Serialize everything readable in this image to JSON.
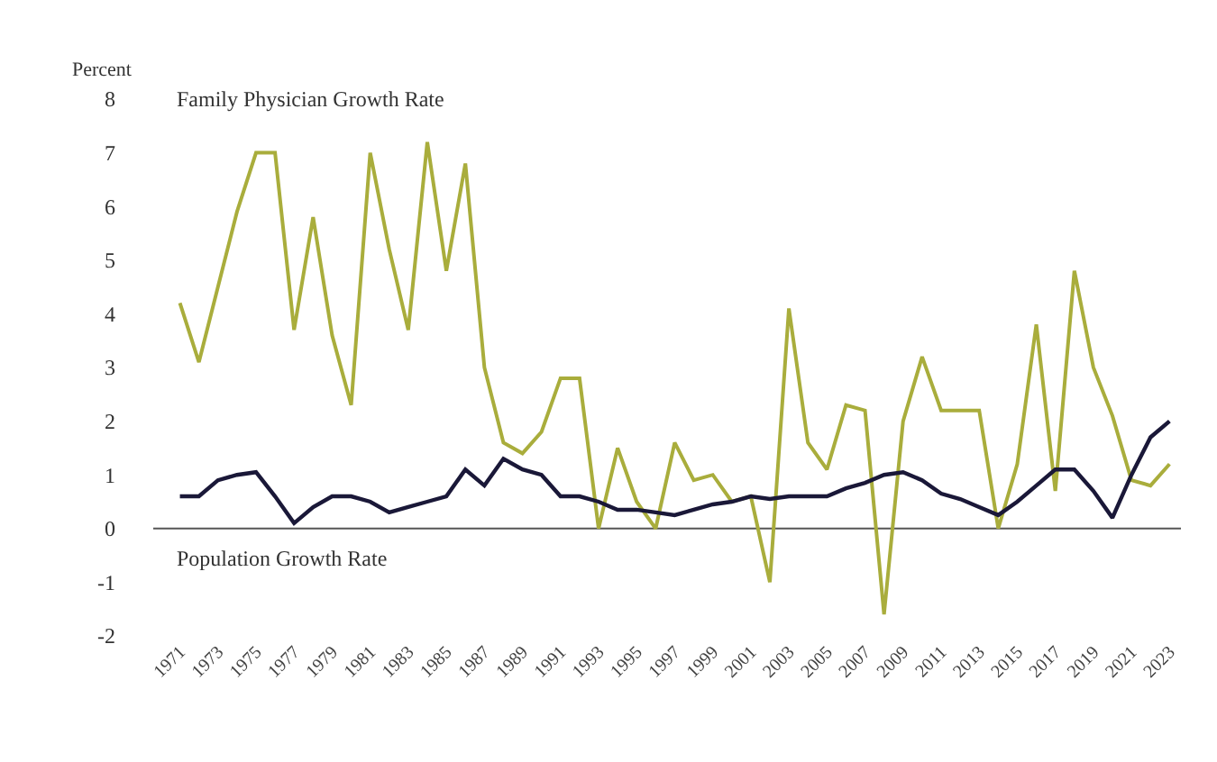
{
  "chart_data": {
    "type": "line",
    "ylabel": "Percent",
    "x": [
      1971,
      1972,
      1973,
      1974,
      1975,
      1976,
      1977,
      1978,
      1979,
      1980,
      1981,
      1982,
      1983,
      1984,
      1985,
      1986,
      1987,
      1988,
      1989,
      1990,
      1991,
      1992,
      1993,
      1994,
      1995,
      1996,
      1997,
      1998,
      1999,
      2000,
      2001,
      2002,
      2003,
      2004,
      2005,
      2006,
      2007,
      2008,
      2009,
      2010,
      2011,
      2012,
      2013,
      2014,
      2015,
      2016,
      2017,
      2018,
      2019,
      2020,
      2021,
      2022,
      2023
    ],
    "series": [
      {
        "name": "Family Physician Growth Rate",
        "color": "#a9ad3c",
        "values": [
          4.2,
          3.1,
          4.5,
          5.9,
          7.0,
          7.0,
          3.7,
          5.8,
          3.6,
          2.3,
          7.0,
          5.2,
          3.7,
          7.2,
          4.8,
          6.8,
          3.0,
          1.6,
          1.4,
          1.8,
          2.8,
          2.8,
          0.0,
          1.5,
          0.5,
          0.0,
          1.6,
          0.9,
          1.0,
          0.5,
          0.6,
          -1.0,
          4.1,
          1.6,
          1.1,
          2.3,
          2.2,
          -1.6,
          2.0,
          3.2,
          2.2,
          2.2,
          2.2,
          0.0,
          1.2,
          3.8,
          0.7,
          4.8,
          3.0,
          2.1,
          0.9,
          0.8,
          1.2
        ]
      },
      {
        "name": "Population Growth Rate",
        "color": "#1a1838",
        "values": [
          0.6,
          0.6,
          0.9,
          1.0,
          1.05,
          0.6,
          0.1,
          0.4,
          0.6,
          0.6,
          0.5,
          0.3,
          0.4,
          0.5,
          0.6,
          1.1,
          0.8,
          1.3,
          1.1,
          1.0,
          0.6,
          0.6,
          0.5,
          0.35,
          0.35,
          0.3,
          0.25,
          0.35,
          0.45,
          0.5,
          0.6,
          0.55,
          0.6,
          0.6,
          0.6,
          0.75,
          0.85,
          1.0,
          1.05,
          0.9,
          0.65,
          0.55,
          0.4,
          0.25,
          0.5,
          0.8,
          1.1,
          1.1,
          0.7,
          0.2,
          1.0,
          1.7,
          2.0
        ]
      }
    ],
    "xlim": [
      1969.6,
      2023.6
    ],
    "xticks": [
      1971,
      1973,
      1975,
      1977,
      1979,
      1981,
      1983,
      1985,
      1987,
      1989,
      1991,
      1993,
      1995,
      1997,
      1999,
      2001,
      2003,
      2005,
      2007,
      2009,
      2011,
      2013,
      2015,
      2017,
      2019,
      2021,
      2023
    ],
    "ylim": [
      -2,
      8
    ],
    "yticks": [
      -2,
      -1,
      0,
      1,
      2,
      3,
      4,
      5,
      6,
      7,
      8
    ],
    "ref_lines": [
      {
        "axis": "y",
        "value": 0,
        "color": "#555555"
      }
    ],
    "grid": false,
    "legend": false,
    "marker": "none",
    "line_style": "solid"
  }
}
